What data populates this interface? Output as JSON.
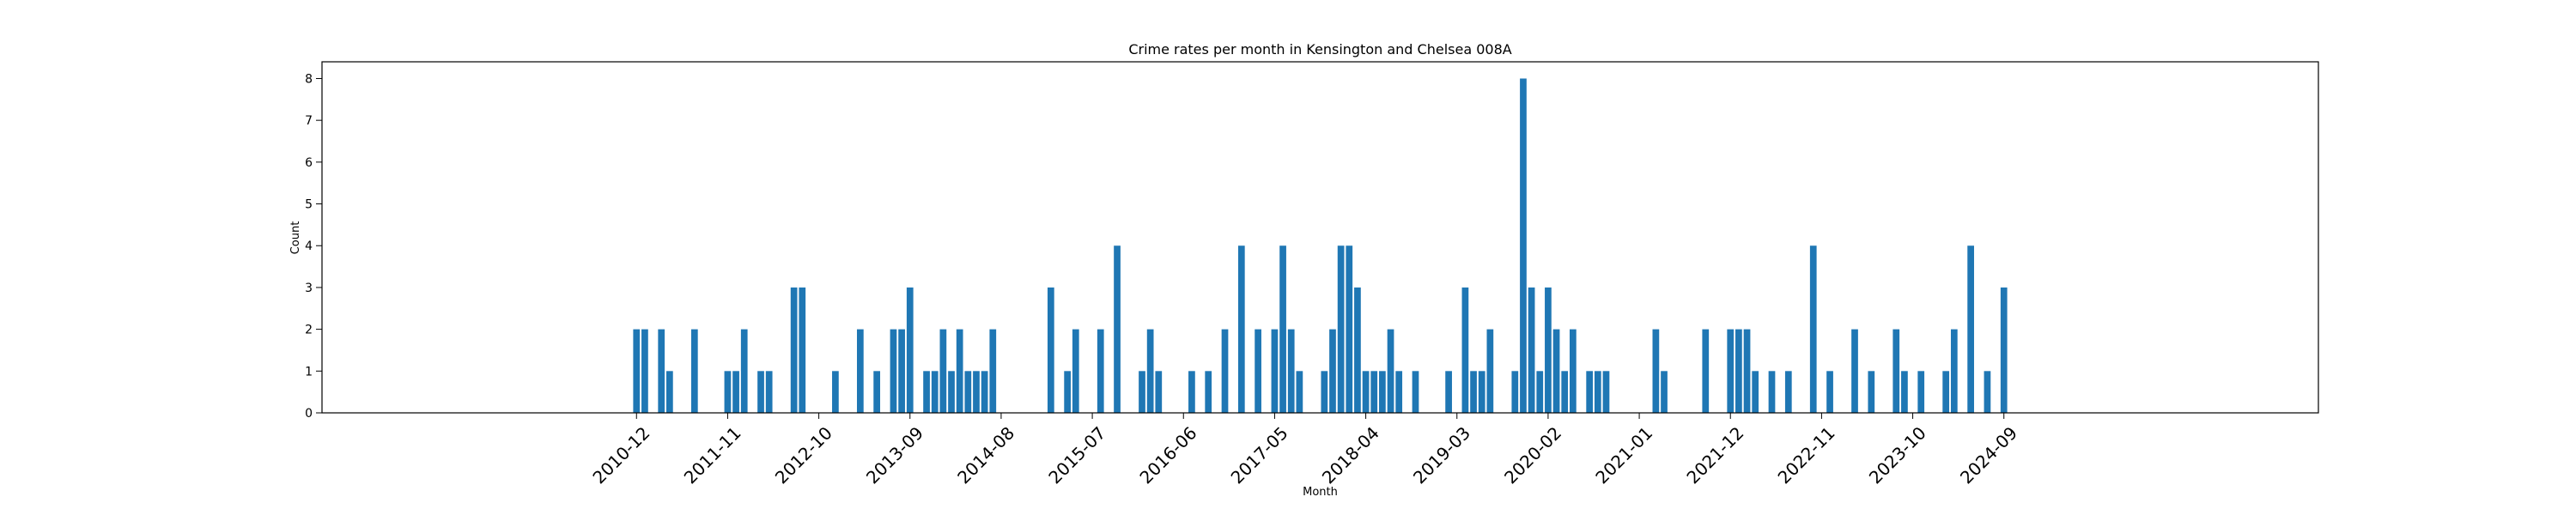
{
  "chart_data": {
    "type": "bar",
    "title": "Crime rates per month in Kensington and Chelsea 008A",
    "xlabel": "Month",
    "ylabel": "Count",
    "ylim": [
      0,
      8.4
    ],
    "yticks": [
      0,
      1,
      2,
      3,
      4,
      5,
      6,
      7,
      8
    ],
    "x_start": "2010-12",
    "x_end": "2024-09",
    "xticks": [
      "2010-12",
      "2011-11",
      "2012-10",
      "2013-09",
      "2014-08",
      "2015-07",
      "2016-06",
      "2017-05",
      "2018-04",
      "2019-03",
      "2020-02",
      "2021-01",
      "2021-12",
      "2022-11",
      "2023-10",
      "2024-09"
    ],
    "bars": [
      [
        "2010-12",
        2
      ],
      [
        "2011-01",
        2
      ],
      [
        "2011-03",
        2
      ],
      [
        "2011-04",
        1
      ],
      [
        "2011-07",
        2
      ],
      [
        "2011-11",
        1
      ],
      [
        "2011-12",
        1
      ],
      [
        "2012-01",
        2
      ],
      [
        "2012-03",
        1
      ],
      [
        "2012-04",
        1
      ],
      [
        "2012-07",
        3
      ],
      [
        "2012-08",
        3
      ],
      [
        "2012-12",
        1
      ],
      [
        "2013-03",
        2
      ],
      [
        "2013-05",
        1
      ],
      [
        "2013-07",
        2
      ],
      [
        "2013-08",
        2
      ],
      [
        "2013-09",
        3
      ],
      [
        "2013-11",
        1
      ],
      [
        "2013-12",
        1
      ],
      [
        "2014-01",
        2
      ],
      [
        "2014-02",
        1
      ],
      [
        "2014-03",
        2
      ],
      [
        "2014-04",
        1
      ],
      [
        "2014-05",
        1
      ],
      [
        "2014-06",
        1
      ],
      [
        "2014-07",
        2
      ],
      [
        "2015-02",
        3
      ],
      [
        "2015-04",
        1
      ],
      [
        "2015-05",
        2
      ],
      [
        "2015-08",
        2
      ],
      [
        "2015-10",
        4
      ],
      [
        "2016-01",
        1
      ],
      [
        "2016-02",
        2
      ],
      [
        "2016-03",
        1
      ],
      [
        "2016-07",
        1
      ],
      [
        "2016-09",
        1
      ],
      [
        "2016-11",
        2
      ],
      [
        "2017-01",
        4
      ],
      [
        "2017-03",
        2
      ],
      [
        "2017-05",
        2
      ],
      [
        "2017-06",
        4
      ],
      [
        "2017-07",
        2
      ],
      [
        "2017-08",
        1
      ],
      [
        "2017-11",
        1
      ],
      [
        "2017-12",
        2
      ],
      [
        "2018-01",
        4
      ],
      [
        "2018-02",
        4
      ],
      [
        "2018-03",
        3
      ],
      [
        "2018-04",
        1
      ],
      [
        "2018-05",
        1
      ],
      [
        "2018-06",
        1
      ],
      [
        "2018-07",
        2
      ],
      [
        "2018-08",
        1
      ],
      [
        "2018-10",
        1
      ],
      [
        "2019-02",
        1
      ],
      [
        "2019-04",
        3
      ],
      [
        "2019-05",
        1
      ],
      [
        "2019-06",
        1
      ],
      [
        "2019-07",
        2
      ],
      [
        "2019-10",
        1
      ],
      [
        "2019-11",
        8
      ],
      [
        "2019-12",
        3
      ],
      [
        "2020-01",
        1
      ],
      [
        "2020-02",
        3
      ],
      [
        "2020-03",
        2
      ],
      [
        "2020-04",
        1
      ],
      [
        "2020-05",
        2
      ],
      [
        "2020-07",
        1
      ],
      [
        "2020-08",
        1
      ],
      [
        "2020-09",
        1
      ],
      [
        "2021-03",
        2
      ],
      [
        "2021-04",
        1
      ],
      [
        "2021-09",
        2
      ],
      [
        "2021-12",
        2
      ],
      [
        "2022-01",
        2
      ],
      [
        "2022-02",
        2
      ],
      [
        "2022-03",
        1
      ],
      [
        "2022-05",
        1
      ],
      [
        "2022-07",
        1
      ],
      [
        "2022-10",
        4
      ],
      [
        "2022-12",
        1
      ],
      [
        "2023-03",
        2
      ],
      [
        "2023-05",
        1
      ],
      [
        "2023-08",
        2
      ],
      [
        "2023-09",
        1
      ],
      [
        "2023-11",
        1
      ],
      [
        "2024-02",
        1
      ],
      [
        "2024-03",
        2
      ],
      [
        "2024-05",
        4
      ],
      [
        "2024-07",
        1
      ],
      [
        "2024-09",
        3
      ]
    ],
    "bar_color": "#1f77b4",
    "grid": false,
    "legend": "none"
  }
}
